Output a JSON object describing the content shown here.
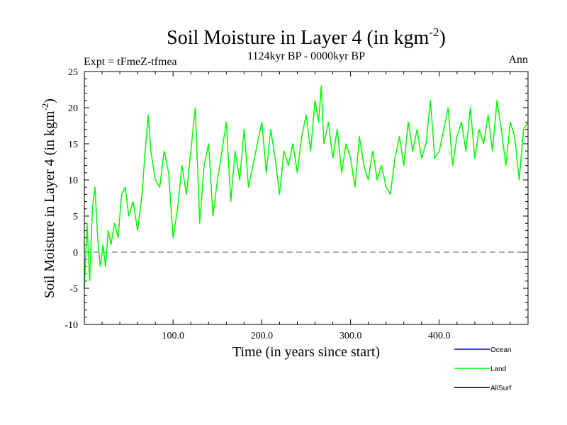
{
  "chart_data": {
    "type": "line",
    "title": "Soil Moisture in Layer 4 (in kgm",
    "title_superscript": "-2",
    "title_close": ")",
    "subtitle": "1124kyr BP - 0000kyr BP",
    "expt_label": "Expt = tFmeZ-tfmea",
    "season_label": "Ann",
    "xlabel": "Time (in years since start)",
    "ylabel": "Soil Moisture in Layer 4 (in kgm",
    "ylabel_superscript": "-2",
    "ylabel_close": ")",
    "xlim": [
      0,
      500
    ],
    "ylim": [
      -10,
      25
    ],
    "x_ticks": [
      100,
      200,
      300,
      400
    ],
    "x_tick_labels": [
      "100.0",
      "200.0",
      "300.0",
      "400.0"
    ],
    "y_ticks": [
      -10,
      -5,
      0,
      5,
      10,
      15,
      20,
      25
    ],
    "y_tick_labels": [
      "-10",
      "-5",
      "0",
      "5",
      "10",
      "15",
      "20",
      "25"
    ],
    "reference_line": 0,
    "legend_entries": [
      "Ocean",
      "Land",
      "AllSurf"
    ],
    "colors": {
      "Ocean": "#0000ff",
      "Land": "#00ff00",
      "AllSurf": "#000000",
      "axis": "#000000",
      "zero_line": "#555555"
    },
    "series": [
      {
        "name": "Land",
        "x": [
          0,
          3,
          6,
          9,
          12,
          15,
          18,
          21,
          24,
          27,
          30,
          34,
          38,
          42,
          46,
          50,
          55,
          60,
          65,
          68,
          72,
          75,
          80,
          85,
          90,
          95,
          100,
          105,
          110,
          115,
          120,
          125,
          130,
          135,
          140,
          145,
          150,
          155,
          160,
          165,
          170,
          175,
          180,
          185,
          190,
          195,
          200,
          205,
          210,
          215,
          220,
          225,
          230,
          235,
          240,
          245,
          250,
          255,
          260,
          264,
          267,
          270,
          275,
          280,
          285,
          290,
          295,
          300,
          305,
          310,
          315,
          320,
          325,
          330,
          335,
          340,
          345,
          350,
          355,
          360,
          365,
          370,
          375,
          380,
          385,
          390,
          395,
          400,
          405,
          410,
          415,
          420,
          425,
          430,
          435,
          440,
          445,
          450,
          455,
          460,
          465,
          470,
          475,
          480,
          485,
          490,
          495,
          500
        ],
        "values": [
          -5,
          4,
          -4,
          6,
          9,
          2,
          -2,
          1,
          -2,
          3,
          1,
          4,
          2,
          8,
          9,
          5,
          7,
          3,
          8,
          13,
          19,
          14,
          10,
          9,
          14,
          11,
          2,
          6,
          12,
          8,
          14,
          20,
          4,
          12,
          15,
          5,
          10,
          14,
          18,
          7,
          14,
          10,
          17,
          9,
          12,
          15,
          18,
          11,
          17,
          13,
          8,
          14,
          12,
          15,
          11,
          16,
          19,
          14,
          21,
          18,
          23,
          15,
          18,
          13,
          17,
          11,
          15,
          13,
          9,
          16,
          12,
          10,
          14,
          10,
          12,
          9,
          8,
          13,
          16,
          12,
          18,
          14,
          17,
          13,
          15,
          21,
          13,
          14,
          17,
          20,
          12,
          16,
          18,
          14,
          20,
          13,
          17,
          15,
          19,
          14,
          21,
          17,
          12,
          18,
          16,
          10,
          17,
          18
        ]
      }
    ]
  }
}
